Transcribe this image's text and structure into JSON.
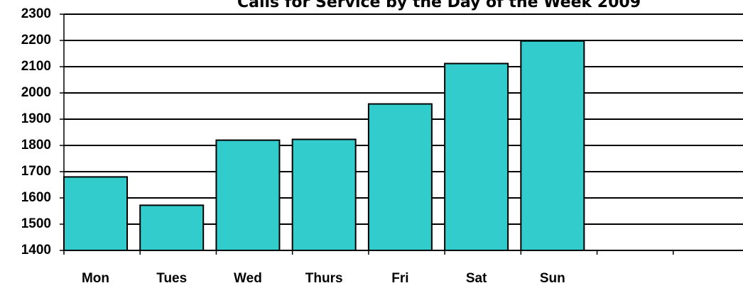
{
  "chart_data": {
    "type": "bar",
    "title": "Calls for Service by the Day of the Week 2009",
    "categories": [
      "Mon",
      "Tues",
      "Wed",
      "Thurs",
      "Fri",
      "Sat",
      "Sun",
      null,
      null
    ],
    "values": [
      1680,
      1572,
      1820,
      1823,
      1958,
      2112,
      2198,
      null,
      null
    ],
    "color": "#33cccc",
    "ylim": [
      1400,
      2300
    ],
    "yticks": [
      1400,
      1500,
      1600,
      1700,
      1800,
      1900,
      2000,
      2100,
      2200,
      2300
    ],
    "grid": true
  }
}
